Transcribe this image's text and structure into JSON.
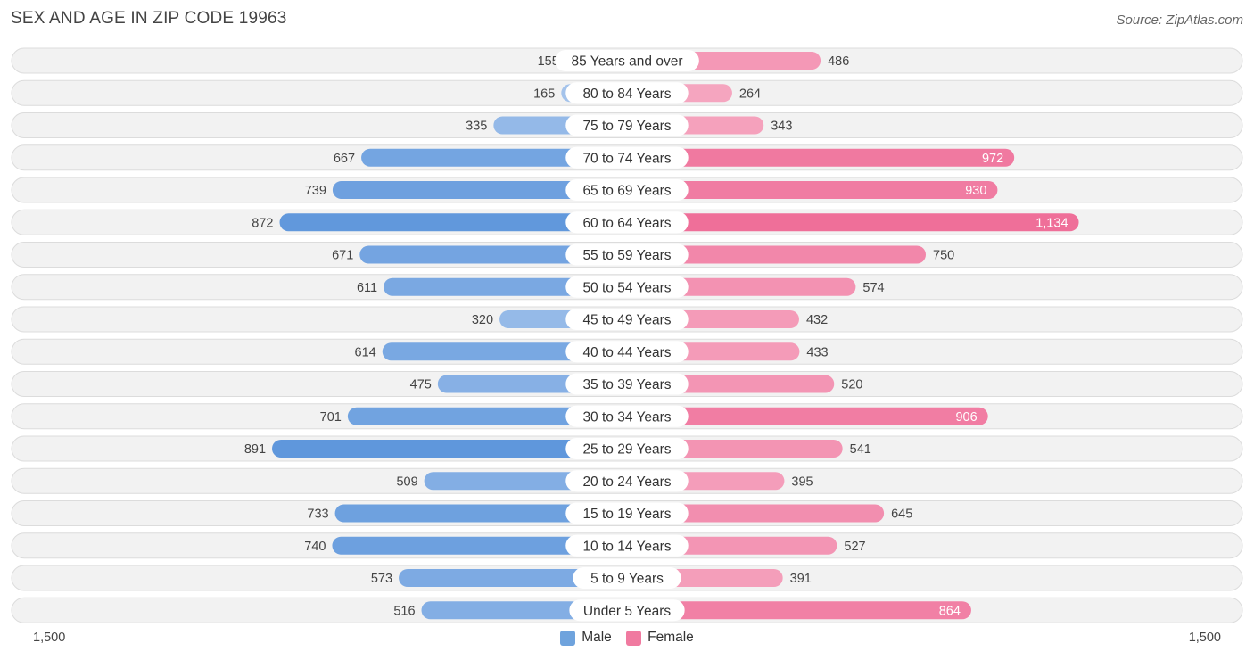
{
  "header": {
    "title": "SEX AND AGE IN ZIP CODE 19963",
    "source": "Source: ZipAtlas.com"
  },
  "axis": {
    "left_label": "1,500",
    "right_label": "1,500"
  },
  "legend": {
    "male_label": "Male",
    "female_label": "Female",
    "male_color": "#6fa3dd",
    "female_color": "#f07aa0"
  },
  "chart_data": {
    "type": "bar",
    "orientation": "horizontal-diverging",
    "title": "SEX AND AGE IN ZIP CODE 19963",
    "xlim": [
      -1500,
      1500
    ],
    "categories": [
      "85 Years and over",
      "80 to 84 Years",
      "75 to 79 Years",
      "70 to 74 Years",
      "65 to 69 Years",
      "60 to 64 Years",
      "55 to 59 Years",
      "50 to 54 Years",
      "45 to 49 Years",
      "40 to 44 Years",
      "35 to 39 Years",
      "30 to 34 Years",
      "25 to 29 Years",
      "20 to 24 Years",
      "15 to 19 Years",
      "10 to 14 Years",
      "5 to 9 Years",
      "Under 5 Years"
    ],
    "series": [
      {
        "name": "Male",
        "values": [
          155,
          165,
          335,
          667,
          739,
          872,
          671,
          611,
          320,
          614,
          475,
          701,
          891,
          509,
          733,
          740,
          573,
          516
        ]
      },
      {
        "name": "Female",
        "values": [
          486,
          264,
          343,
          972,
          930,
          1134,
          750,
          574,
          432,
          433,
          520,
          906,
          541,
          395,
          645,
          527,
          391,
          864
        ]
      }
    ],
    "grid": false,
    "legend_position": "bottom-center"
  }
}
